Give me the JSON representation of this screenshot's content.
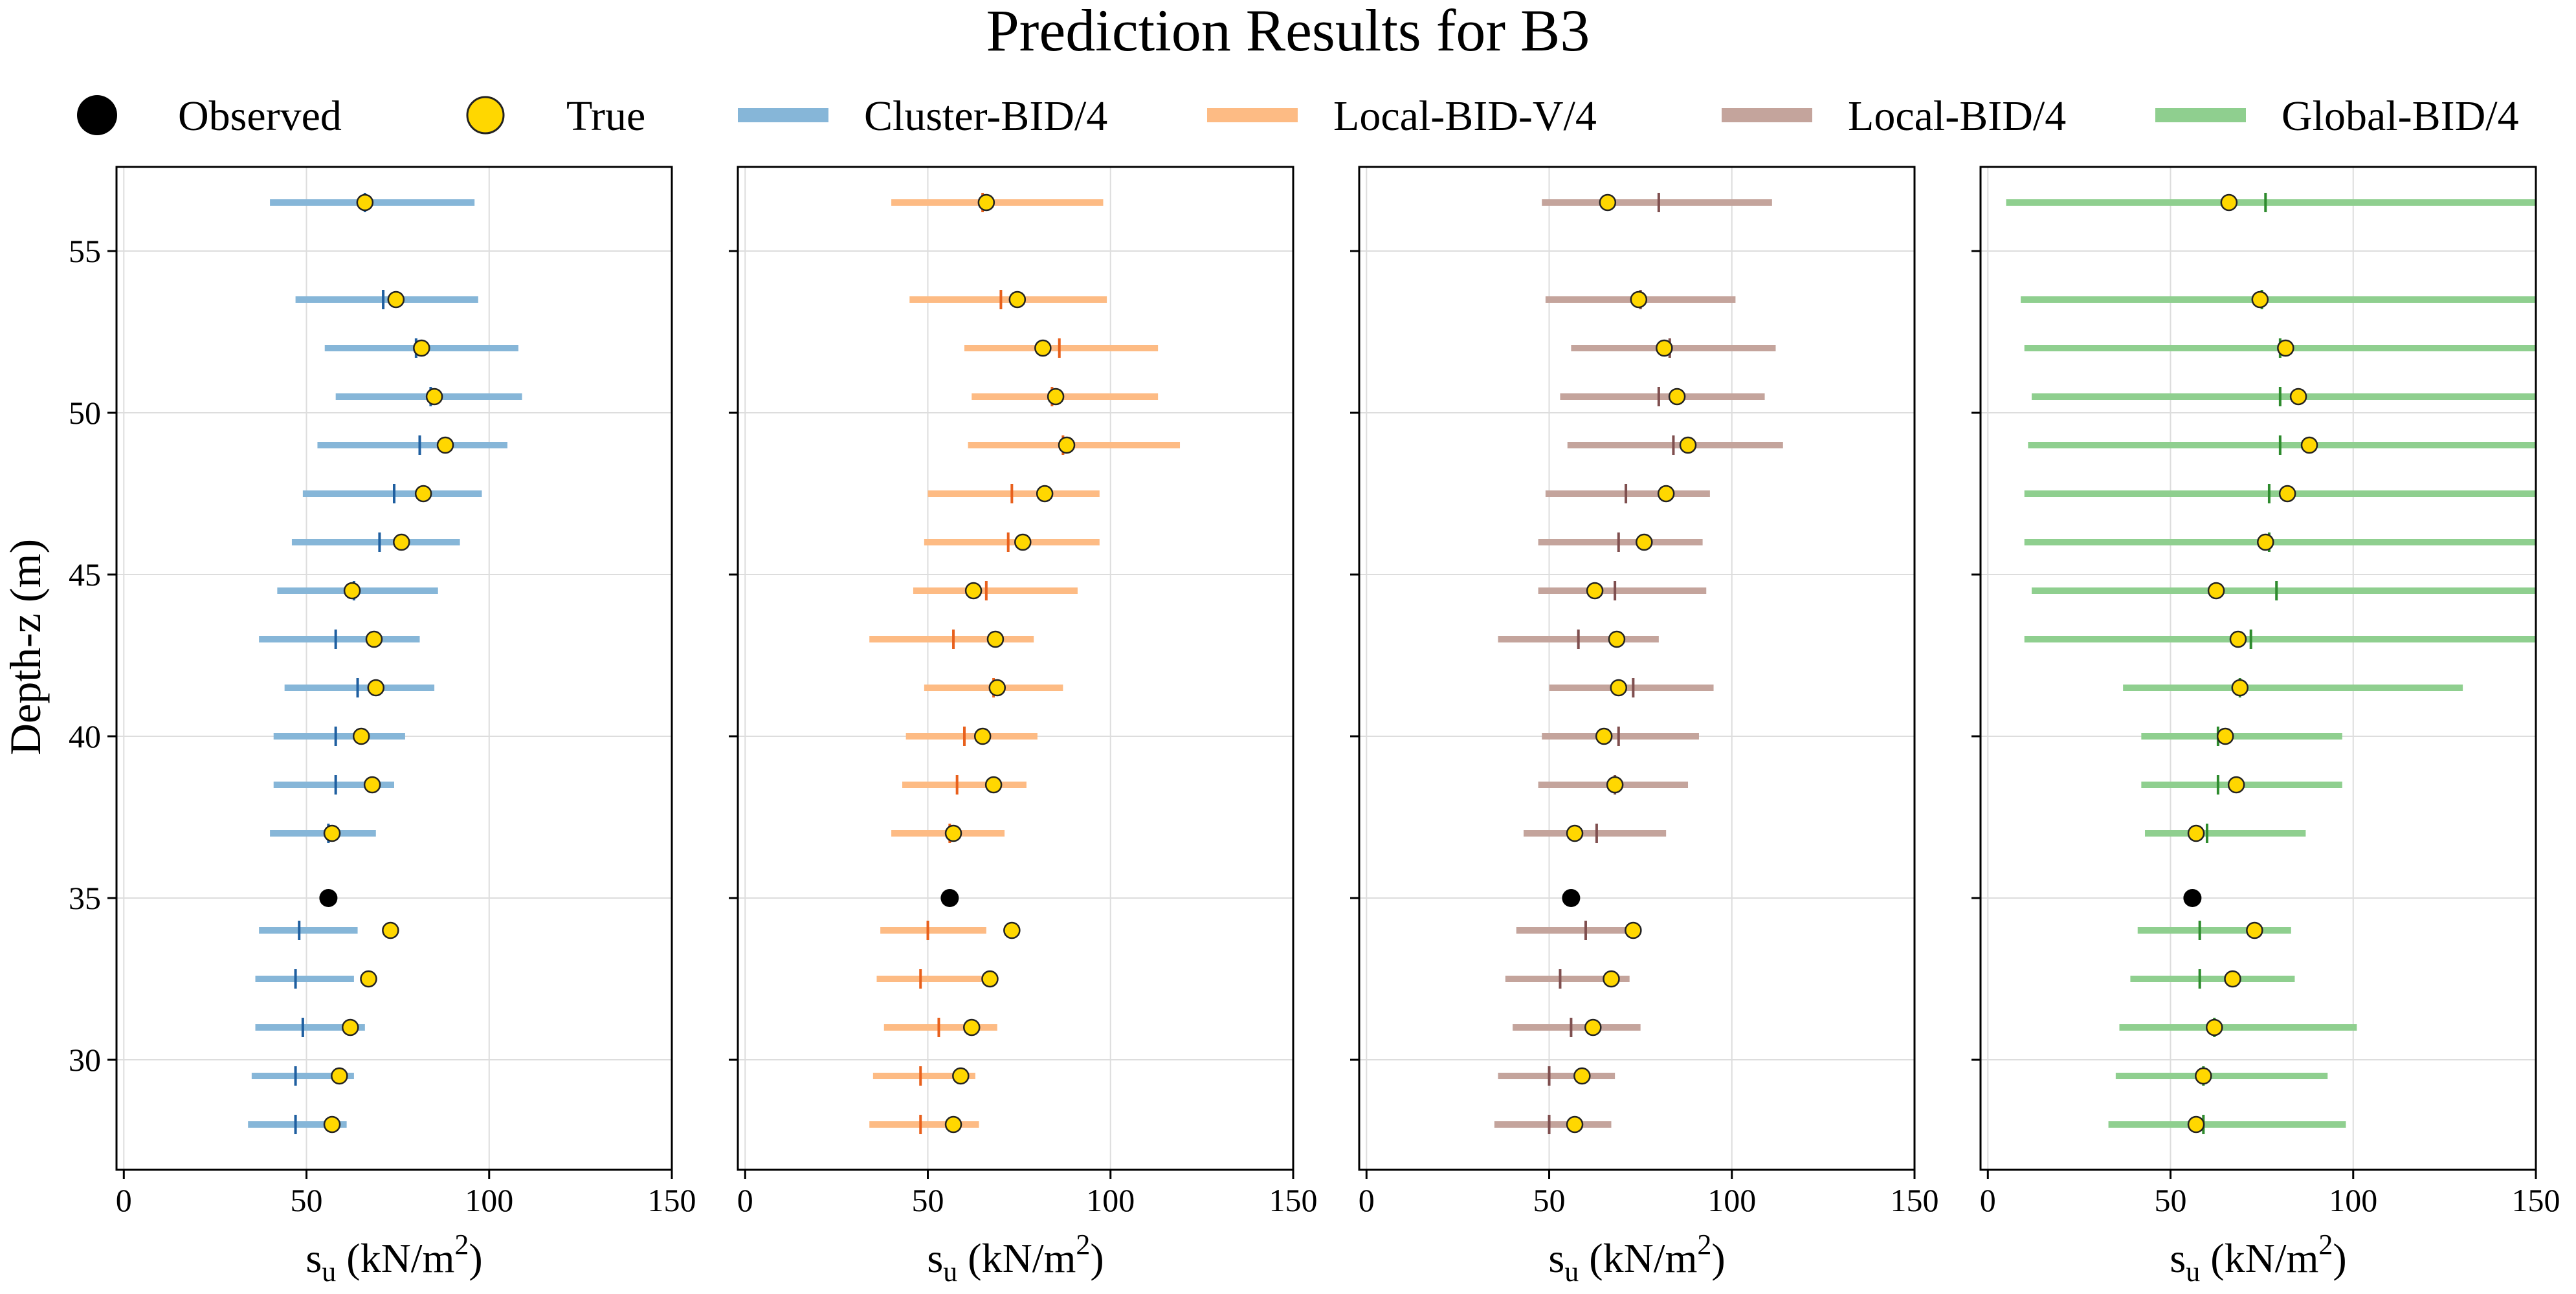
{
  "chart_data": {
    "type": "errorbar",
    "title": "Prediction Results for B3",
    "xlabel": "s_u (kN/m^2)",
    "xlabel_parts": {
      "base": "s",
      "sub": "u",
      "unit": "(kN/m",
      "sup": "2",
      "close": ")"
    },
    "ylabel": "Depth-z (m)",
    "xlim": [
      -2,
      150
    ],
    "ylim": [
      57.6,
      26.6
    ],
    "xticks": [
      "0",
      "50",
      "100",
      "150"
    ],
    "yticks": [
      "30",
      "35",
      "40",
      "45",
      "50",
      "55"
    ],
    "legend": [
      {
        "label": "Observed",
        "kind": "observed",
        "color": "#000000"
      },
      {
        "label": "True",
        "kind": "true",
        "color": "#ffd700"
      },
      {
        "label": "Cluster-BID/4",
        "kind": "line",
        "color": "#86b6d8"
      },
      {
        "label": "Local-BID-V/4",
        "kind": "line",
        "color": "#fdbb84"
      },
      {
        "label": "Local-BID/4",
        "kind": "line",
        "color": "#c4a49c"
      },
      {
        "label": "Global-BID/4",
        "kind": "line",
        "color": "#8fcf8f"
      }
    ],
    "depths": [
      28,
      29.5,
      31,
      32.5,
      34,
      37,
      38.5,
      40,
      41.5,
      43,
      44.5,
      46,
      47.5,
      49,
      50.5,
      52,
      53.5,
      56.5
    ],
    "observed": {
      "depth": 35,
      "value": 56
    },
    "true_values": [
      57,
      59,
      62,
      67,
      73,
      57,
      68,
      65,
      69,
      68.5,
      62.5,
      76,
      82,
      88,
      85,
      81.5,
      74.5,
      66
    ],
    "series": [
      {
        "name": "Cluster-BID/4",
        "color": "#86b6d8",
        "median_color": "#1f5fa0",
        "lower": [
          34,
          35,
          36,
          36,
          37,
          40,
          41,
          41,
          44,
          37,
          42,
          46,
          49,
          53,
          58,
          55,
          47,
          40
        ],
        "median": [
          47,
          47,
          49,
          47,
          48,
          56,
          58,
          58,
          64,
          58,
          63,
          70,
          74,
          81,
          84,
          80,
          71,
          66
        ],
        "upper": [
          61,
          63,
          66,
          63,
          64,
          69,
          74,
          77,
          85,
          81,
          86,
          92,
          98,
          105,
          109,
          108,
          97,
          96
        ]
      },
      {
        "name": "Local-BID-V/4",
        "color": "#fdbb84",
        "median_color": "#e8601c",
        "lower": [
          34,
          35,
          38,
          36,
          37,
          40,
          43,
          44,
          49,
          34,
          46,
          49,
          50,
          61,
          62,
          60,
          45,
          40
        ],
        "median": [
          48,
          48,
          53,
          48,
          50,
          56,
          58,
          60,
          68,
          57,
          66,
          72,
          73,
          87,
          84,
          86,
          70,
          65
        ],
        "upper": [
          64,
          63,
          69,
          65,
          66,
          71,
          77,
          80,
          87,
          79,
          91,
          97,
          97,
          119,
          113,
          113,
          99,
          98
        ]
      },
      {
        "name": "Local-BID/4",
        "color": "#c4a49c",
        "median_color": "#7f4f4f",
        "lower": [
          35,
          36,
          40,
          38,
          41,
          43,
          47,
          48,
          50,
          36,
          47,
          47,
          49,
          55,
          53,
          56,
          49,
          48
        ],
        "median": [
          50,
          50,
          56,
          53,
          60,
          63,
          68,
          69,
          73,
          58,
          68,
          69,
          71,
          84,
          80,
          83,
          75,
          80
        ],
        "upper": [
          67,
          68,
          75,
          72,
          74,
          82,
          88,
          91,
          95,
          80,
          93,
          92,
          94,
          114,
          109,
          112,
          101,
          111
        ]
      },
      {
        "name": "Global-BID/4",
        "color": "#8fcf8f",
        "median_color": "#2e8b2e",
        "lower": [
          33,
          35,
          36,
          39,
          41,
          43,
          42,
          42,
          37,
          10,
          12,
          10,
          10,
          11,
          12,
          10,
          9,
          5
        ],
        "median": [
          59,
          59,
          62,
          58,
          58,
          60,
          63,
          63,
          69,
          72,
          79,
          77,
          77,
          80,
          80,
          80,
          75,
          76
        ],
        "upper": [
          98,
          93,
          101,
          84,
          83,
          87,
          97,
          97,
          130,
          150,
          150,
          150,
          150,
          150,
          150,
          150,
          150,
          150
        ]
      }
    ]
  }
}
